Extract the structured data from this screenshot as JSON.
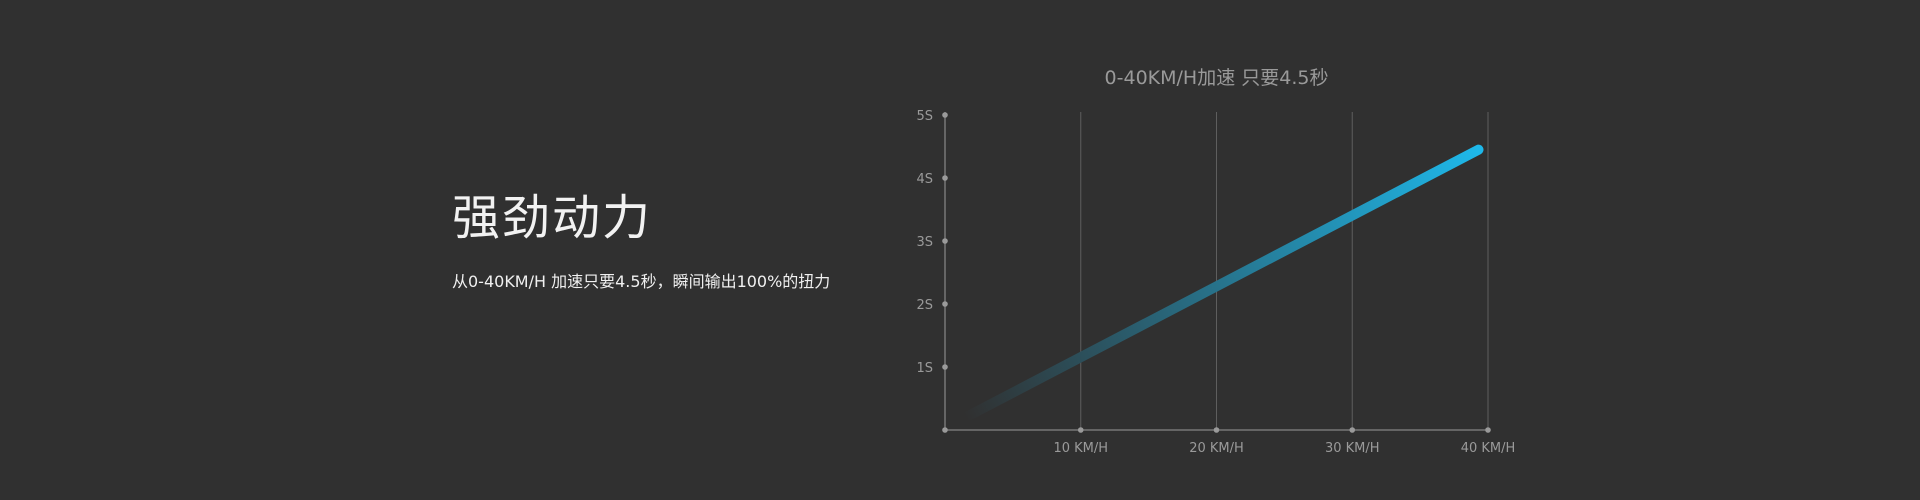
{
  "text": {
    "headline": "强劲动力",
    "subline": "从0-40KM/H 加速只要4.5秒，瞬间输出100%的扭力"
  },
  "colors": {
    "background": "#303030",
    "axis": "#9a9a9a",
    "grid": "#5e5e5e",
    "line_start": "#303030",
    "line_end": "#1eb8ea"
  },
  "chart_data": {
    "type": "line",
    "title": "0-40KM/H加速 只要4.5秒",
    "xlabel": "",
    "ylabel": "",
    "x_ticks": [
      {
        "value": 10,
        "label": "10 KM/H"
      },
      {
        "value": 20,
        "label": "20 KM/H"
      },
      {
        "value": 30,
        "label": "30 KM/H"
      },
      {
        "value": 40,
        "label": "40 KM/H"
      }
    ],
    "y_ticks": [
      {
        "value": 1,
        "label": "1S"
      },
      {
        "value": 2,
        "label": "2S"
      },
      {
        "value": 3,
        "label": "3S"
      },
      {
        "value": 4,
        "label": "4S"
      },
      {
        "value": 5,
        "label": "5S"
      }
    ],
    "xlim": [
      0,
      40
    ],
    "ylim": [
      0,
      5
    ],
    "grid": "vertical",
    "series": [
      {
        "x": [
          1.5,
          39.3
        ],
        "y": [
          0.2,
          4.45
        ]
      }
    ]
  }
}
